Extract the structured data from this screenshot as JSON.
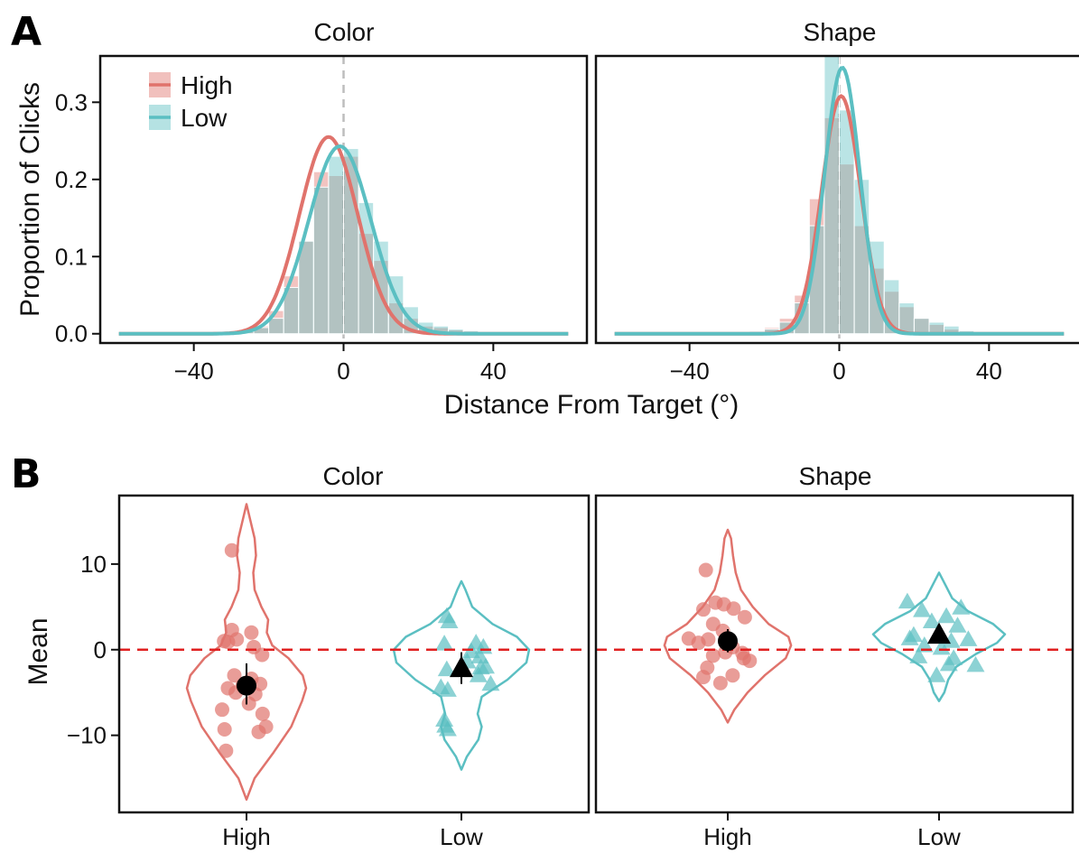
{
  "colors": {
    "High": "#E0736C",
    "Low": "#5BBFC2",
    "reference_line_a": "#BDBDBD",
    "reference_line_b": "#E02020",
    "summary_marker": "#000000"
  },
  "chart_data": [
    {
      "panel_label": "A",
      "type": "histogram with fitted density curves",
      "xlabel": "Distance From Target (°)",
      "ylabel": "Proportion of Clicks",
      "xlim": [
        -65,
        65
      ],
      "ylim": [
        -0.012,
        0.36
      ],
      "xticks": [
        -40,
        0,
        40
      ],
      "xtick_labels": [
        "−40",
        "0",
        "40"
      ],
      "yticks": [
        0.0,
        0.1,
        0.2,
        0.3
      ],
      "ytick_labels": [
        "0.0",
        "0.1",
        "0.2",
        "0.3"
      ],
      "reference_line_x": 0,
      "legend": {
        "position": "top-left",
        "entries": [
          "High",
          "Low"
        ]
      },
      "bin_width": 4,
      "facets": [
        {
          "title": "Color",
          "bin_centers": [
            -26,
            -22,
            -18,
            -14,
            -10,
            -6,
            -2,
            2,
            6,
            10,
            14,
            18,
            22,
            26,
            30,
            34
          ],
          "series": [
            {
              "name": "High",
              "hist": [
                0.004,
                0.01,
                0.03,
                0.075,
                0.12,
                0.21,
                0.205,
                0.23,
                0.13,
                0.095,
                0.04,
                0.02,
                0.01,
                0.008,
                0.005,
                0.003
              ],
              "curve": {
                "mean": -4,
                "sd": 7.8,
                "peak": 0.255
              }
            },
            {
              "name": "Low",
              "hist": [
                0.003,
                0.008,
                0.02,
                0.06,
                0.12,
                0.19,
                0.23,
                0.24,
                0.17,
                0.12,
                0.075,
                0.035,
                0.015,
                0.01,
                0.006,
                0.004
              ],
              "curve": {
                "mean": -1,
                "sd": 8.3,
                "peak": 0.243
              }
            }
          ]
        },
        {
          "title": "Shape",
          "bin_centers": [
            -26,
            -22,
            -18,
            -14,
            -10,
            -6,
            -2,
            2,
            6,
            10,
            14,
            18,
            22,
            26,
            30,
            34
          ],
          "series": [
            {
              "name": "High",
              "hist": [
                0.002,
                0.004,
                0.008,
                0.02,
                0.05,
                0.175,
                0.28,
                0.22,
                0.14,
                0.085,
                0.055,
                0.035,
                0.02,
                0.012,
                0.006,
                0.003
              ],
              "curve": {
                "mean": 0.5,
                "sd": 5.2,
                "peak": 0.308
              }
            },
            {
              "name": "Low",
              "hist": [
                0.002,
                0.003,
                0.006,
                0.015,
                0.04,
                0.14,
                0.36,
                0.29,
                0.2,
                0.12,
                0.07,
                0.04,
                0.02,
                0.015,
                0.01,
                0.004
              ],
              "curve": {
                "mean": 0.8,
                "sd": 4.7,
                "peak": 0.345
              }
            }
          ]
        }
      ]
    },
    {
      "panel_label": "B",
      "type": "violin with jittered points and mean ± error bar",
      "xlabel": "",
      "ylabel": "Mean",
      "categories": [
        "High",
        "Low"
      ],
      "ylim": [
        -19,
        18
      ],
      "yticks": [
        -10,
        0,
        10
      ],
      "ytick_labels": [
        "−10",
        "0",
        "10"
      ],
      "reference_line_y": 0,
      "facets": [
        {
          "title": "Color",
          "groups": [
            {
              "name": "High",
              "marker": "circle",
              "mean": -4.2,
              "error_low": -6.4,
              "error_high": -1.6,
              "points": [
                [
                  -0.3,
                  11.6
                ],
                [
                  -0.38,
                  0.9
                ],
                [
                  -0.3,
                  2.3
                ],
                [
                  -0.2,
                  1.2
                ],
                [
                  -0.46,
                  1.0
                ],
                [
                  0.1,
                  2.0
                ],
                [
                  0.15,
                  0.3
                ],
                [
                  0.32,
                  -0.6
                ],
                [
                  -0.25,
                  -3.0
                ],
                [
                  0.1,
                  -3.4
                ],
                [
                  -0.08,
                  -4.2
                ],
                [
                  0.28,
                  -4.0
                ],
                [
                  -0.38,
                  -4.5
                ],
                [
                  -0.22,
                  -5.0
                ],
                [
                  0.18,
                  -5.2
                ],
                [
                  0.05,
                  -6.3
                ],
                [
                  -0.5,
                  -7.0
                ],
                [
                  0.33,
                  -7.5
                ],
                [
                  -0.45,
                  -9.3
                ],
                [
                  0.25,
                  -9.6
                ],
                [
                  0.4,
                  -9.0
                ],
                [
                  -0.42,
                  -11.8
                ]
              ],
              "violin": [
                [
                  -17.5,
                  0
                ],
                [
                  -15,
                  0.12
                ],
                [
                  -12,
                  0.4
                ],
                [
                  -9,
                  0.66
                ],
                [
                  -6,
                  0.82
                ],
                [
                  -4.5,
                  0.88
                ],
                [
                  -3,
                  0.83
                ],
                [
                  -1,
                  0.62
                ],
                [
                  0.5,
                  0.38
                ],
                [
                  2,
                  0.3
                ],
                [
                  3.5,
                  0.32
                ],
                [
                  5,
                  0.22
                ],
                [
                  7,
                  0.12
                ],
                [
                  9,
                  0.1
                ],
                [
                  11,
                  0.14
                ],
                [
                  13,
                  0.12
                ],
                [
                  15,
                  0.06
                ],
                [
                  17,
                  0
                ]
              ]
            },
            {
              "name": "Low",
              "marker": "triangle",
              "mean": -2.1,
              "error_low": -4.0,
              "error_high": -0.3,
              "points": [
                [
                  -0.25,
                  3.3
                ],
                [
                  -0.3,
                  3.9
                ],
                [
                  -0.35,
                  0.7
                ],
                [
                  0.3,
                  0.8
                ],
                [
                  0.2,
                  -0.2
                ],
                [
                  0.45,
                  0.3
                ],
                [
                  0.38,
                  -0.8
                ],
                [
                  0.12,
                  -1.4
                ],
                [
                  0.5,
                  -2.0
                ],
                [
                  0.4,
                  -2.1
                ],
                [
                  0.35,
                  -3.0
                ],
                [
                  -0.3,
                  -2.3
                ],
                [
                  -0.42,
                  -4.4
                ],
                [
                  -0.28,
                  -4.7
                ],
                [
                  0.6,
                  -4.0
                ],
                [
                  -0.35,
                  -8.2
                ],
                [
                  -0.28,
                  -9.3
                ],
                [
                  -0.33,
                  -8.9
                ]
              ],
              "violin": [
                [
                  -14,
                  0
                ],
                [
                  -12.5,
                  0.08
                ],
                [
                  -10.5,
                  0.25
                ],
                [
                  -9,
                  0.3
                ],
                [
                  -7.5,
                  0.24
                ],
                [
                  -5.5,
                  0.3
                ],
                [
                  -3.5,
                  0.68
                ],
                [
                  -1.5,
                  0.96
                ],
                [
                  0,
                  1.0
                ],
                [
                  1.5,
                  0.82
                ],
                [
                  3,
                  0.46
                ],
                [
                  5,
                  0.16
                ],
                [
                  7,
                  0.06
                ],
                [
                  8,
                  0
                ]
              ]
            }
          ]
        },
        {
          "title": "Shape",
          "groups": [
            {
              "name": "High",
              "marker": "circle",
              "mean": 1.0,
              "error_low": -0.3,
              "error_high": 2.4,
              "points": [
                [
                  -0.45,
                  9.3
                ],
                [
                  -0.5,
                  4.7
                ],
                [
                  -0.25,
                  5.5
                ],
                [
                  -0.08,
                  5.3
                ],
                [
                  0.12,
                  4.8
                ],
                [
                  0.35,
                  3.8
                ],
                [
                  -0.3,
                  3.0
                ],
                [
                  -0.1,
                  2.2
                ],
                [
                  -0.4,
                  1.2
                ],
                [
                  -0.8,
                  1.3
                ],
                [
                  -0.6,
                  0.8
                ],
                [
                  0.1,
                  0.3
                ],
                [
                  0.3,
                  -0.4
                ],
                [
                  -0.3,
                  -0.7
                ],
                [
                  0.33,
                  -1.0
                ],
                [
                  -0.42,
                  -2.1
                ],
                [
                  0.1,
                  -3.0
                ],
                [
                  -0.5,
                  -3.2
                ],
                [
                  -0.15,
                  -3.9
                ],
                [
                  0.45,
                  -1.3
                ],
                [
                  -0.05,
                  -0.3
                ]
              ],
              "violin": [
                [
                  -8.5,
                  0
                ],
                [
                  -7,
                  0.1
                ],
                [
                  -5,
                  0.3
                ],
                [
                  -3,
                  0.56
                ],
                [
                  -1,
                  0.88
                ],
                [
                  0.5,
                  0.96
                ],
                [
                  1.5,
                  0.92
                ],
                [
                  3,
                  0.62
                ],
                [
                  5,
                  0.38
                ],
                [
                  7,
                  0.2
                ],
                [
                  9,
                  0.12
                ],
                [
                  11,
                  0.08
                ],
                [
                  13,
                  0.05
                ],
                [
                  14,
                  0
                ]
              ]
            },
            {
              "name": "Low",
              "marker": "triangle",
              "mean": 1.8,
              "error_low": 0.9,
              "error_high": 2.8,
              "points": [
                [
                  -0.65,
                  5.6
                ],
                [
                  -0.35,
                  4.6
                ],
                [
                  0.45,
                  4.9
                ],
                [
                  0.15,
                  3.9
                ],
                [
                  -0.15,
                  3.3
                ],
                [
                  0.38,
                  2.8
                ],
                [
                  -0.52,
                  1.7
                ],
                [
                  0.6,
                  1.2
                ],
                [
                  0.25,
                  1.0
                ],
                [
                  -0.3,
                  0.5
                ],
                [
                  -0.42,
                  -0.8
                ],
                [
                  0.3,
                  -1.0
                ],
                [
                  0.2,
                  -1.7
                ],
                [
                  0.75,
                  -1.8
                ],
                [
                  -0.05,
                  -3.0
                ],
                [
                  -0.6,
                  1.3
                ],
                [
                  0.05,
                  0.2
                ]
              ],
              "violin": [
                [
                  -6,
                  0
                ],
                [
                  -5,
                  0.08
                ],
                [
                  -3.5,
                  0.14
                ],
                [
                  -2,
                  0.26
                ],
                [
                  -0.5,
                  0.56
                ],
                [
                  0.8,
                  0.88
                ],
                [
                  1.8,
                  1.0
                ],
                [
                  3,
                  0.82
                ],
                [
                  4.5,
                  0.44
                ],
                [
                  6,
                  0.2
                ],
                [
                  7.5,
                  0.1
                ],
                [
                  9,
                  0
                ]
              ]
            }
          ]
        }
      ]
    }
  ]
}
